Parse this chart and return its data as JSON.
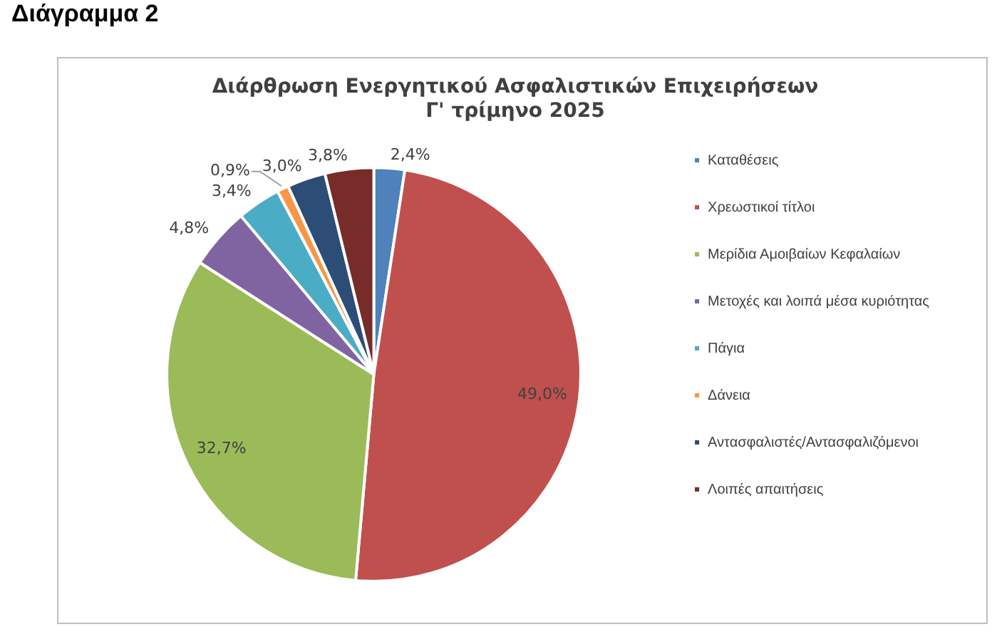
{
  "chart_data": {
    "type": "pie",
    "title": "Διάρθρωση Ενεργητικού Ασφαλιστικών Επιχειρήσεων\nΓ' τρίμηνο 2025",
    "annotations": [
      "Διάγραμμα 2"
    ],
    "categories": [
      "Καταθέσεις",
      "Χρεωστικοί τίτλοι",
      "Μερίδια Αμοιβαίων Κεφαλαίων",
      "Μετοχές και λοιπά μέσα κυριότητας",
      "Πάγια",
      "Δάνεια",
      "Αντασφαλιστές/Αντασφαλιζόμενοι",
      "Λοιπές απαιτήσεις"
    ],
    "values": [
      2.4,
      49.0,
      32.7,
      4.8,
      3.4,
      0.9,
      3.0,
      3.8
    ],
    "value_labels": [
      "2,4%",
      "49,0%",
      "32,7%",
      "4,8%",
      "3,4%",
      "0,9%",
      "3,0%",
      "3,8%"
    ],
    "colors": [
      "#4f81bd",
      "#c0504d",
      "#9bbb59",
      "#8064a2",
      "#4bacc6",
      "#f79646",
      "#2c4d75",
      "#772c2a"
    ],
    "legend": "right"
  }
}
